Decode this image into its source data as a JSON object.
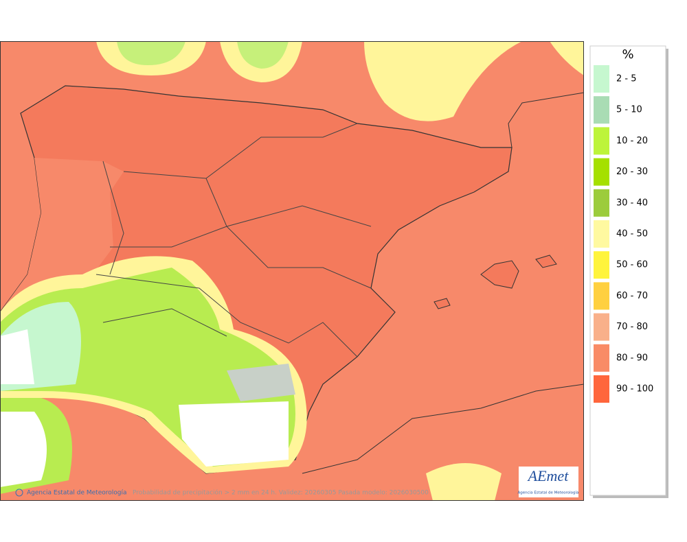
{
  "legend": {
    "title": "%",
    "items": [
      {
        "label": "2 - 5",
        "color": "#c6f7cf"
      },
      {
        "label": "5 - 10",
        "color": "#a9dcb4"
      },
      {
        "label": "10 - 20",
        "color": "#bdf43a"
      },
      {
        "label": "20 - 30",
        "color": "#a5e000"
      },
      {
        "label": "30 - 40",
        "color": "#9ccc3c"
      },
      {
        "label": "40 - 50",
        "color": "#fff9a0"
      },
      {
        "label": "50 - 60",
        "color": "#fff43c"
      },
      {
        "label": "60 - 70",
        "color": "#ffd040"
      },
      {
        "label": "70 - 80",
        "color": "#f9b08a"
      },
      {
        "label": "80 - 90",
        "color": "#f98b66"
      },
      {
        "label": "90 - 100",
        "color": "#ff663c"
      }
    ]
  },
  "footer": {
    "credit": "Agencia Estatal de Meteorología",
    "caption": "Probabilidad de precipitación > 2 mm en 24 h. Validez: 20260305 Pasada modelo: 2026030500"
  },
  "logo": {
    "name": "AEmet",
    "subtitle": "Agencia Estatal de Meteorología"
  }
}
